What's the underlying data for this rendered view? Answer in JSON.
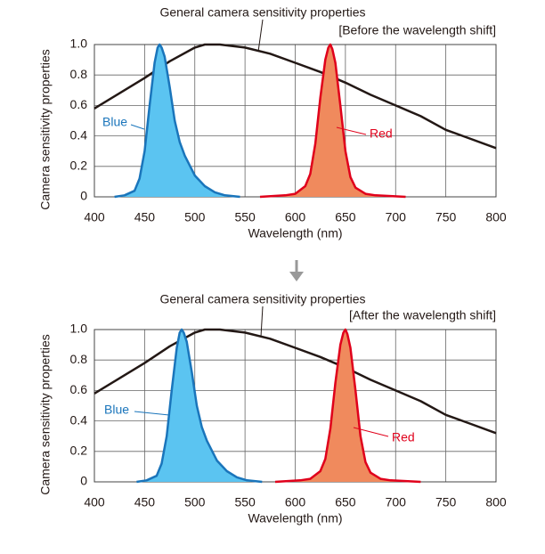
{
  "chart_data": [
    {
      "type": "line",
      "title": "General camera sensitivity properties",
      "subtitle": "[Before the wavelength shift]",
      "x_label": "Wavelength (nm)",
      "y_label": "Camera sensitivity properties",
      "xlim": [
        400,
        800
      ],
      "xticks": [
        400,
        450,
        500,
        550,
        600,
        650,
        700,
        750,
        800
      ],
      "ylim": [
        0,
        1
      ],
      "yticks": [
        0,
        0.2,
        0.4,
        0.6,
        0.8,
        {
          "value": 1,
          "label": "1.0"
        }
      ],
      "grid": true,
      "series": [
        {
          "name": "General camera sensitivity properties",
          "color": "#231815",
          "x": [
            400,
            425,
            450,
            475,
            500,
            510,
            525,
            550,
            575,
            600,
            625,
            650,
            675,
            700,
            725,
            750,
            775,
            800
          ],
          "values": [
            0.58,
            0.68,
            0.78,
            0.89,
            0.98,
            1.0,
            1.0,
            0.98,
            0.94,
            0.88,
            0.82,
            0.75,
            0.67,
            0.6,
            0.53,
            0.44,
            0.38,
            0.32
          ]
        },
        {
          "name": "Blue",
          "color": "#1a75bb",
          "fill": "#5bc4f1",
          "x": [
            420,
            430,
            440,
            445,
            450,
            455,
            460,
            463,
            465,
            467,
            470,
            475,
            480,
            485,
            490,
            500,
            510,
            520,
            530,
            545
          ],
          "values": [
            0,
            0.01,
            0.04,
            0.12,
            0.3,
            0.6,
            0.88,
            0.98,
            1.0,
            0.98,
            0.92,
            0.72,
            0.5,
            0.36,
            0.27,
            0.14,
            0.07,
            0.03,
            0.01,
            0
          ]
        },
        {
          "name": "Red",
          "color": "#e0001b",
          "fill": "#f08a5d",
          "x": [
            565,
            590,
            600,
            610,
            615,
            620,
            625,
            630,
            633,
            635,
            637,
            640,
            645,
            650,
            655,
            660,
            670,
            680,
            710
          ],
          "values": [
            0,
            0.01,
            0.02,
            0.07,
            0.15,
            0.35,
            0.65,
            0.9,
            0.98,
            1.0,
            0.97,
            0.88,
            0.6,
            0.3,
            0.13,
            0.06,
            0.02,
            0.01,
            0
          ]
        }
      ]
    },
    {
      "type": "line",
      "title": "General camera sensitivity properties",
      "subtitle": "[After the wavelength shift]",
      "x_label": "Wavelength (nm)",
      "y_label": "Camera sensitivity properties",
      "xlim": [
        400,
        800
      ],
      "xticks": [
        400,
        450,
        500,
        550,
        600,
        650,
        700,
        750,
        800
      ],
      "ylim": [
        0,
        1
      ],
      "yticks": [
        0,
        0.2,
        0.4,
        0.6,
        0.8,
        {
          "value": 1,
          "label": "1.0"
        }
      ],
      "grid": true,
      "series": [
        {
          "name": "General camera sensitivity properties",
          "color": "#231815",
          "x": [
            400,
            425,
            450,
            475,
            500,
            510,
            525,
            550,
            575,
            600,
            625,
            650,
            675,
            700,
            725,
            750,
            775,
            800
          ],
          "values": [
            0.58,
            0.68,
            0.78,
            0.89,
            0.98,
            1.0,
            1.0,
            0.98,
            0.94,
            0.88,
            0.82,
            0.75,
            0.67,
            0.6,
            0.53,
            0.44,
            0.38,
            0.32
          ]
        },
        {
          "name": "Blue",
          "color": "#1a75bb",
          "fill": "#5bc4f1",
          "x": [
            442,
            452,
            462,
            467,
            472,
            477,
            482,
            485,
            487,
            489,
            492,
            497,
            502,
            507,
            512,
            522,
            532,
            542,
            552,
            567
          ],
          "values": [
            0,
            0.01,
            0.04,
            0.12,
            0.3,
            0.6,
            0.88,
            0.98,
            1.0,
            0.98,
            0.92,
            0.72,
            0.5,
            0.36,
            0.27,
            0.14,
            0.07,
            0.03,
            0.01,
            0
          ]
        },
        {
          "name": "Red",
          "color": "#e0001b",
          "fill": "#f08a5d",
          "x": [
            580,
            605,
            615,
            625,
            630,
            635,
            640,
            645,
            648,
            650,
            652,
            655,
            660,
            665,
            670,
            675,
            685,
            695,
            725
          ],
          "values": [
            0,
            0.01,
            0.02,
            0.07,
            0.15,
            0.35,
            0.65,
            0.9,
            0.98,
            1.0,
            0.97,
            0.88,
            0.6,
            0.3,
            0.13,
            0.06,
            0.02,
            0.01,
            0
          ]
        }
      ]
    }
  ]
}
